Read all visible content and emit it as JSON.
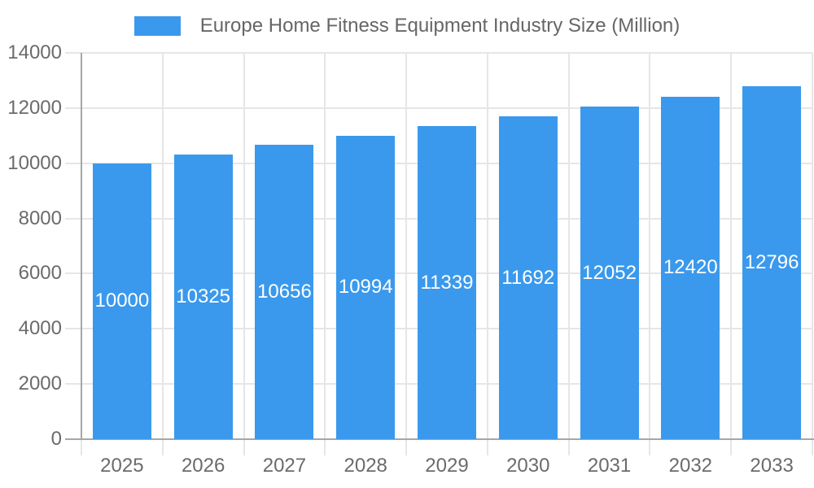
{
  "legend": {
    "label": "Europe Home Fitness Equipment Industry Size (Million)",
    "position": "top"
  },
  "colors": {
    "bar": "#3A99EC",
    "grid": "#E6E6E6",
    "axis": "#A6A6A6",
    "tick_text": "#6B6B6B",
    "legend_text": "#666666",
    "bar_label_text": "#FFFFFF",
    "background": "#FFFFFF"
  },
  "chart_data": {
    "type": "bar",
    "title": "Europe Home Fitness Equipment Industry Size (Million)",
    "categories": [
      "2025",
      "2026",
      "2027",
      "2028",
      "2029",
      "2030",
      "2031",
      "2032",
      "2033"
    ],
    "values": [
      10000,
      10325,
      10656,
      10994,
      11339,
      11692,
      12052,
      12420,
      12796
    ],
    "xlabel": "",
    "ylabel": "",
    "ylim": [
      0,
      14000
    ],
    "yticks": [
      0,
      2000,
      4000,
      6000,
      8000,
      10000,
      12000,
      14000
    ],
    "grid": true,
    "legend_position": "top",
    "value_labels": "inside-center"
  }
}
